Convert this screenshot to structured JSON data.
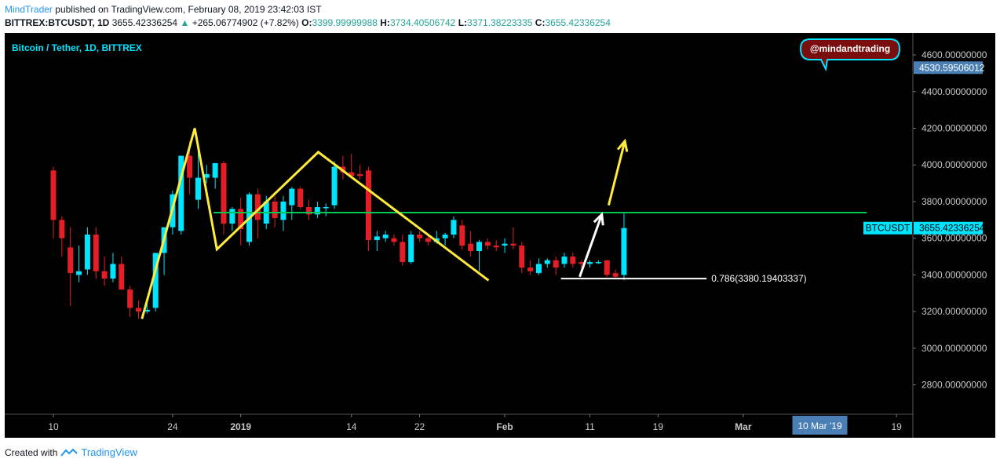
{
  "header": {
    "author": "MindTrader",
    "published_text": "published on TradingView.com, February 08, 2019 23:42:03 IST",
    "symbol": "BITTREX:BTCUSDT, 1D",
    "last_price": "3655.42336254",
    "change_arrow": "▲",
    "change": "+265.06774902 (+7.82%)",
    "o_label": "O:",
    "o_value": "3399.99999988",
    "h_label": "H:",
    "h_value": "3734.40506742",
    "l_label": "L:",
    "l_value": "3371.38223335",
    "c_label": "C:",
    "c_value": "3655.42336254"
  },
  "footer": {
    "created_with": "Created with",
    "brand": "TradingView"
  },
  "colors": {
    "background": "#000000",
    "up": "#00e5ff",
    "down": "#e41e26",
    "pattern": "#ffeb3b",
    "resistance": "#00c853",
    "accent": "#2196f3"
  },
  "chart_data": {
    "type": "candlestick",
    "title": "Bitcoin / Tether, 1D, BITTREX",
    "ylim": [
      2640,
      4720
    ],
    "y_ticks": [
      2800,
      3000,
      3200,
      3400,
      3600,
      3800,
      4000,
      4200,
      4400,
      4600
    ],
    "y_tick_labels": [
      "2800.00000000",
      "3000.00000000",
      "3200.00000000",
      "3400.00000000",
      "3600.00000000",
      "3800.00000000",
      "4000.00000000",
      "4200.00000000",
      "4400.00000000",
      "4600.00000000"
    ],
    "x_tick_labels": [
      {
        "label": "10",
        "day": 0
      },
      {
        "label": "24",
        "day": 14
      },
      {
        "label": "2019",
        "day": 22
      },
      {
        "label": "14",
        "day": 35
      },
      {
        "label": "22",
        "day": 43
      },
      {
        "label": "Feb",
        "day": 53
      },
      {
        "label": "11",
        "day": 63
      },
      {
        "label": "19",
        "day": 71
      },
      {
        "label": "Mar",
        "day": 81
      },
      {
        "label": "19",
        "day": 99
      }
    ],
    "x_highlight": {
      "label": "10 Mar '19",
      "day": 90
    },
    "price_marks": [
      {
        "label": "4530.59506012",
        "value": 4530.59506012,
        "kind": "axis"
      },
      {
        "label": "3655.42336254",
        "value": 3655.42336254,
        "kind": "last",
        "name": "BTCUSDT"
      }
    ],
    "watermark": "@mindandtrading",
    "candles": [
      {
        "o": 3970,
        "h": 3990,
        "l": 3600,
        "c": 3700
      },
      {
        "o": 3700,
        "h": 3720,
        "l": 3500,
        "c": 3600
      },
      {
        "o": 3550,
        "h": 3660,
        "l": 3230,
        "c": 3410
      },
      {
        "o": 3400,
        "h": 3560,
        "l": 3360,
        "c": 3420
      },
      {
        "o": 3430,
        "h": 3660,
        "l": 3400,
        "c": 3620
      },
      {
        "o": 3620,
        "h": 3660,
        "l": 3380,
        "c": 3420
      },
      {
        "o": 3420,
        "h": 3500,
        "l": 3340,
        "c": 3380
      },
      {
        "o": 3380,
        "h": 3520,
        "l": 3360,
        "c": 3460
      },
      {
        "o": 3460,
        "h": 3500,
        "l": 3320,
        "c": 3320
      },
      {
        "o": 3320,
        "h": 3340,
        "l": 3170,
        "c": 3220
      },
      {
        "o": 3220,
        "h": 3260,
        "l": 3160,
        "c": 3200
      },
      {
        "o": 3200,
        "h": 3260,
        "l": 3190,
        "c": 3210
      },
      {
        "o": 3220,
        "h": 3520,
        "l": 3200,
        "c": 3520
      },
      {
        "o": 3520,
        "h": 3660,
        "l": 3400,
        "c": 3660
      },
      {
        "o": 3660,
        "h": 3860,
        "l": 3620,
        "c": 3840
      },
      {
        "o": 3640,
        "h": 4050,
        "l": 3620,
        "c": 4050
      },
      {
        "o": 4050,
        "h": 4130,
        "l": 3840,
        "c": 3930
      },
      {
        "o": 3810,
        "h": 4100,
        "l": 3760,
        "c": 3930
      },
      {
        "o": 3930,
        "h": 4000,
        "l": 3900,
        "c": 3950
      },
      {
        "o": 3930,
        "h": 4010,
        "l": 3870,
        "c": 4010
      },
      {
        "o": 4010,
        "h": 4020,
        "l": 3620,
        "c": 3680
      },
      {
        "o": 3680,
        "h": 3770,
        "l": 3640,
        "c": 3760
      },
      {
        "o": 3760,
        "h": 3820,
        "l": 3560,
        "c": 3650
      },
      {
        "o": 3580,
        "h": 3850,
        "l": 3560,
        "c": 3840
      },
      {
        "o": 3840,
        "h": 3870,
        "l": 3600,
        "c": 3700
      },
      {
        "o": 3680,
        "h": 3830,
        "l": 3650,
        "c": 3800
      },
      {
        "o": 3800,
        "h": 3830,
        "l": 3660,
        "c": 3710
      },
      {
        "o": 3700,
        "h": 3830,
        "l": 3640,
        "c": 3800
      },
      {
        "o": 3780,
        "h": 3880,
        "l": 3700,
        "c": 3870
      },
      {
        "o": 3870,
        "h": 3880,
        "l": 3760,
        "c": 3770
      },
      {
        "o": 3770,
        "h": 3810,
        "l": 3700,
        "c": 3730
      },
      {
        "o": 3730,
        "h": 3800,
        "l": 3710,
        "c": 3770
      },
      {
        "o": 3770,
        "h": 3790,
        "l": 3720,
        "c": 3770
      },
      {
        "o": 3780,
        "h": 4020,
        "l": 3760,
        "c": 3990
      },
      {
        "o": 3990,
        "h": 4050,
        "l": 3920,
        "c": 3960
      },
      {
        "o": 3960,
        "h": 4060,
        "l": 3930,
        "c": 3940
      },
      {
        "o": 3950,
        "h": 4000,
        "l": 3920,
        "c": 3940
      },
      {
        "o": 3970,
        "h": 3990,
        "l": 3530,
        "c": 3590
      },
      {
        "o": 3590,
        "h": 3640,
        "l": 3530,
        "c": 3610
      },
      {
        "o": 3600,
        "h": 3640,
        "l": 3580,
        "c": 3620
      },
      {
        "o": 3600,
        "h": 3620,
        "l": 3560,
        "c": 3580
      },
      {
        "o": 3580,
        "h": 3620,
        "l": 3450,
        "c": 3470
      },
      {
        "o": 3470,
        "h": 3640,
        "l": 3460,
        "c": 3620
      },
      {
        "o": 3620,
        "h": 3640,
        "l": 3580,
        "c": 3600
      },
      {
        "o": 3600,
        "h": 3620,
        "l": 3560,
        "c": 3580
      },
      {
        "o": 3580,
        "h": 3640,
        "l": 3570,
        "c": 3600
      },
      {
        "o": 3600,
        "h": 3630,
        "l": 3560,
        "c": 3620
      },
      {
        "o": 3620,
        "h": 3720,
        "l": 3600,
        "c": 3700
      },
      {
        "o": 3670,
        "h": 3700,
        "l": 3540,
        "c": 3560
      },
      {
        "o": 3570,
        "h": 3640,
        "l": 3500,
        "c": 3530
      },
      {
        "o": 3530,
        "h": 3590,
        "l": 3420,
        "c": 3580
      },
      {
        "o": 3580,
        "h": 3600,
        "l": 3540,
        "c": 3560
      },
      {
        "o": 3560,
        "h": 3590,
        "l": 3530,
        "c": 3550
      },
      {
        "o": 3560,
        "h": 3600,
        "l": 3520,
        "c": 3570
      },
      {
        "o": 3570,
        "h": 3660,
        "l": 3540,
        "c": 3560
      },
      {
        "o": 3560,
        "h": 3580,
        "l": 3410,
        "c": 3440
      },
      {
        "o": 3440,
        "h": 3480,
        "l": 3400,
        "c": 3420
      },
      {
        "o": 3410,
        "h": 3490,
        "l": 3400,
        "c": 3460
      },
      {
        "o": 3460,
        "h": 3490,
        "l": 3440,
        "c": 3480
      },
      {
        "o": 3480,
        "h": 3500,
        "l": 3400,
        "c": 3440
      },
      {
        "o": 3460,
        "h": 3520,
        "l": 3440,
        "c": 3500
      },
      {
        "o": 3500,
        "h": 3520,
        "l": 3440,
        "c": 3460
      },
      {
        "o": 3470,
        "h": 3480,
        "l": 3440,
        "c": 3460
      },
      {
        "o": 3460,
        "h": 3480,
        "l": 3440,
        "c": 3470
      },
      {
        "o": 3470,
        "h": 3480,
        "l": 3460,
        "c": 3470
      },
      {
        "o": 3480,
        "h": 3480,
        "l": 3390,
        "c": 3400
      },
      {
        "o": 3410,
        "h": 3430,
        "l": 3380,
        "c": 3390
      },
      {
        "o": 3399.99999988,
        "h": 3734.40506742,
        "l": 3371.38223335,
        "c": 3655.42336254
      }
    ],
    "pattern_lines": [
      {
        "points": [
          [
            10.4,
            3160
          ],
          [
            16.6,
            4200
          ],
          [
            19.2,
            3540
          ],
          [
            31.1,
            4070
          ],
          [
            51.1,
            3370
          ]
        ]
      }
    ],
    "resistance_line": {
      "value": 3740,
      "from": 18.8,
      "to": 95.5
    },
    "fib_line": {
      "value": 3380,
      "from": 59.6,
      "to": 76.7,
      "label": "0.786(3380.19403337)"
    },
    "arrows": [
      {
        "color": "white",
        "from": [
          61.8,
          3390
        ],
        "to": [
          64.4,
          3730
        ]
      },
      {
        "color": "yellow",
        "from": [
          65.2,
          3780
        ],
        "to": [
          67.1,
          4130
        ]
      }
    ]
  }
}
